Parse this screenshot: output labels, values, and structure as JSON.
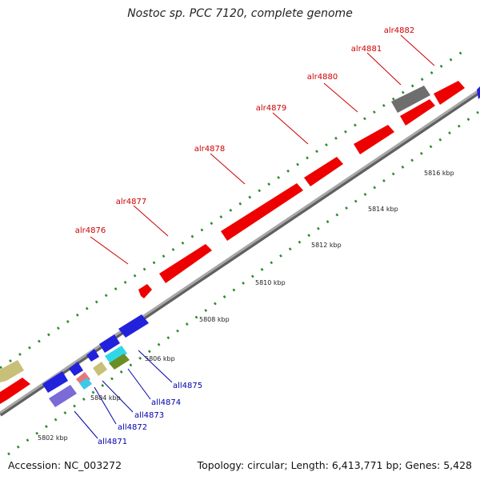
{
  "title": "Nostoc sp. PCC 7120, complete genome",
  "footer": {
    "accession": "Accession: NC_003272",
    "summary": "Topology: circular; Length: 6,413,771 bp; Genes: 5,428"
  },
  "colors": {
    "forward_gene": "#ff0000",
    "forward_label": "#cc0000",
    "reverse_label": "#0000aa",
    "backbone": "#8a8a8a",
    "tick": "#2e8b2e"
  },
  "ruler": {
    "ticks": [
      {
        "label": "5802 kbp"
      },
      {
        "label": "5804 kbp"
      },
      {
        "label": "5806 kbp"
      },
      {
        "label": "5808 kbp"
      },
      {
        "label": "5810 kbp"
      },
      {
        "label": "5812 kbp"
      },
      {
        "label": "5814 kbp"
      },
      {
        "label": "5816 kbp"
      }
    ]
  },
  "forward_genes": [
    {
      "label": "alr4876"
    },
    {
      "label": "alr4877"
    },
    {
      "label": "alr4878"
    },
    {
      "label": "alr4879"
    },
    {
      "label": "alr4880"
    },
    {
      "label": "alr4881"
    },
    {
      "label": "alr4882"
    }
  ],
  "reverse_genes": [
    {
      "label": "all4871"
    },
    {
      "label": "all4872"
    },
    {
      "label": "all4873"
    },
    {
      "label": "all4874"
    },
    {
      "label": "all4875"
    }
  ]
}
